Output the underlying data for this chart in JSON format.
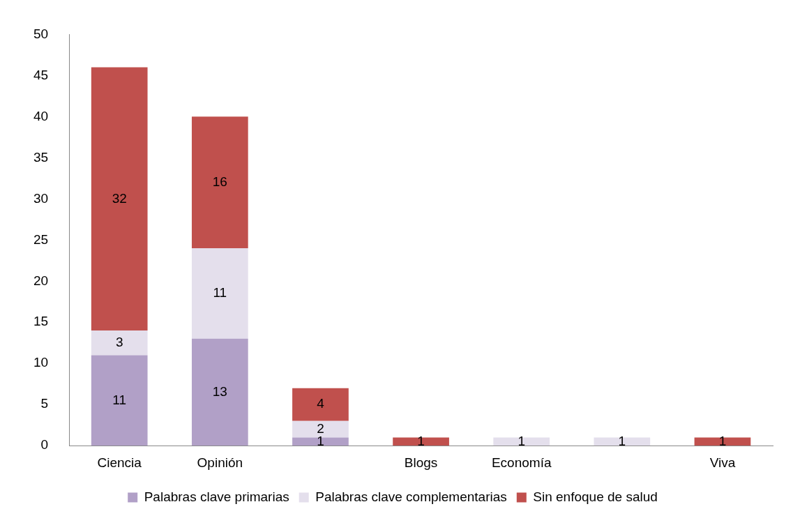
{
  "chart_data": {
    "type": "bar",
    "stacked": true,
    "categories": [
      "Ciencia",
      "Opinión",
      null,
      "Blogs",
      "Economía",
      null,
      "Viva"
    ],
    "series": [
      {
        "name": "Palabras clave primarias",
        "color": "#b1a0c7",
        "values": [
          11,
          13,
          1,
          null,
          null,
          null,
          null
        ]
      },
      {
        "name": "Palabras clave complementarias",
        "color": "#e4dfec",
        "values": [
          3,
          11,
          2,
          null,
          1,
          1,
          null
        ]
      },
      {
        "name": "Sin enfoque de salud",
        "color": "#c0504d",
        "values": [
          32,
          16,
          4,
          1,
          null,
          null,
          1
        ]
      }
    ],
    "ylim": [
      0,
      50
    ],
    "yticks": [
      0,
      5,
      10,
      15,
      20,
      25,
      30,
      35,
      40,
      45,
      50
    ],
    "grid": false,
    "legend": "bottom",
    "data_labels": true
  }
}
